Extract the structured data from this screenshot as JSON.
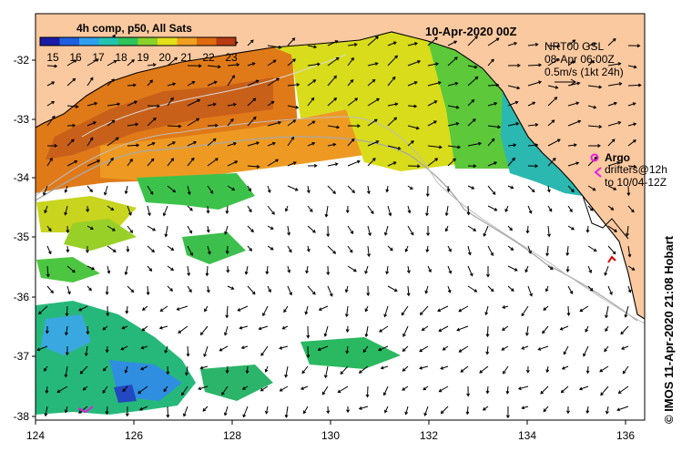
{
  "map": {
    "title": "10-Apr-2020 00Z",
    "colorbar": {
      "title": "4h comp, p50, All Sats",
      "ticks": [
        "15",
        "16",
        "17",
        "18",
        "19",
        "20",
        "21",
        "22",
        "23"
      ],
      "colors": [
        "#1a1aa8",
        "#1f5fe0",
        "#2fa0f0",
        "#22c4b0",
        "#2ec45a",
        "#8ad22a",
        "#e4e01a",
        "#f0a020",
        "#e06a10",
        "#b83a10"
      ]
    },
    "current_info": {
      "line1": "NRT00 GSL",
      "line2": "08-Apr 06:00Z",
      "line3": "0.5m/s (1kt 24h)"
    },
    "argo": {
      "label": "Argo",
      "line2": "drifters@12h",
      "line3": "to 10/04-12Z"
    },
    "credit": "© IMOS 11-Apr-2020 21:08 Hobart",
    "lat_ticks": [
      "-32",
      "-33",
      "-34",
      "-35",
      "-36",
      "-37",
      "-38"
    ],
    "lon_ticks": [
      "124",
      "126",
      "128",
      "130",
      "132",
      "134",
      "136"
    ],
    "colors": {
      "land": "#fbc9a0",
      "coast": "#000000",
      "argo": "#e020e0",
      "bathy": "#a8a8a8"
    }
  }
}
